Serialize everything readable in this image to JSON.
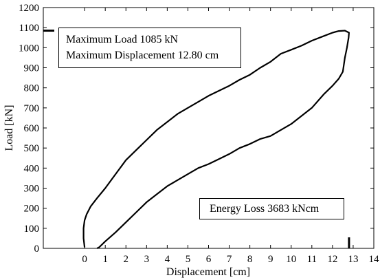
{
  "chart_data": {
    "type": "line",
    "xlabel": "Displacement [cm]",
    "ylabel": "Load [kN]",
    "xlim": [
      -2,
      14
    ],
    "ylim": [
      0,
      1200
    ],
    "x_ticks": [
      0,
      1,
      2,
      3,
      4,
      5,
      6,
      7,
      8,
      9,
      10,
      11,
      12,
      13,
      14
    ],
    "y_ticks": [
      0,
      100,
      200,
      300,
      400,
      500,
      600,
      700,
      800,
      900,
      1000,
      1100,
      1200
    ],
    "grid": false,
    "series": [
      {
        "color": "#000000",
        "x": [
          0.0,
          -0.05,
          -0.05,
          0.0,
          0.1,
          0.3,
          0.6,
          1.0,
          1.5,
          2.0,
          2.5,
          3.0,
          3.5,
          4.0,
          4.5,
          5.0,
          5.5,
          6.0,
          6.5,
          7.0,
          7.5,
          8.0,
          8.5,
          9.0,
          9.5,
          10.0,
          10.5,
          11.0,
          11.5,
          12.0,
          12.3,
          12.6,
          12.8,
          12.78,
          12.7,
          12.6,
          12.5,
          12.3,
          12.0,
          11.6,
          11.0,
          10.5,
          10.0,
          9.5,
          9.0,
          8.5,
          8.0,
          7.5,
          7.0,
          6.5,
          6.0,
          5.5,
          5.0,
          4.5,
          4.0,
          3.5,
          3.0,
          2.5,
          2.0,
          1.5,
          1.0,
          0.85,
          0.7,
          0.6
        ],
        "y": [
          5,
          50,
          100,
          140,
          170,
          210,
          250,
          300,
          370,
          440,
          490,
          540,
          590,
          630,
          670,
          700,
          730,
          760,
          785,
          810,
          840,
          865,
          900,
          930,
          970,
          990,
          1010,
          1035,
          1055,
          1075,
          1083,
          1085,
          1075,
          1050,
          1000,
          950,
          880,
          845,
          810,
          770,
          700,
          660,
          620,
          590,
          560,
          545,
          520,
          500,
          470,
          445,
          420,
          400,
          370,
          340,
          310,
          270,
          230,
          180,
          130,
          80,
          35,
          20,
          5,
          0
        ]
      }
    ],
    "annotations": {
      "max_load": "Maximum Load 1085 kN",
      "max_displacement": "Maximum Displacement 12.80 cm",
      "energy_loss": "Energy Loss 3683 kNcm"
    },
    "markers": {
      "max_load_value": 1085,
      "max_displacement_value": 12.8
    }
  }
}
